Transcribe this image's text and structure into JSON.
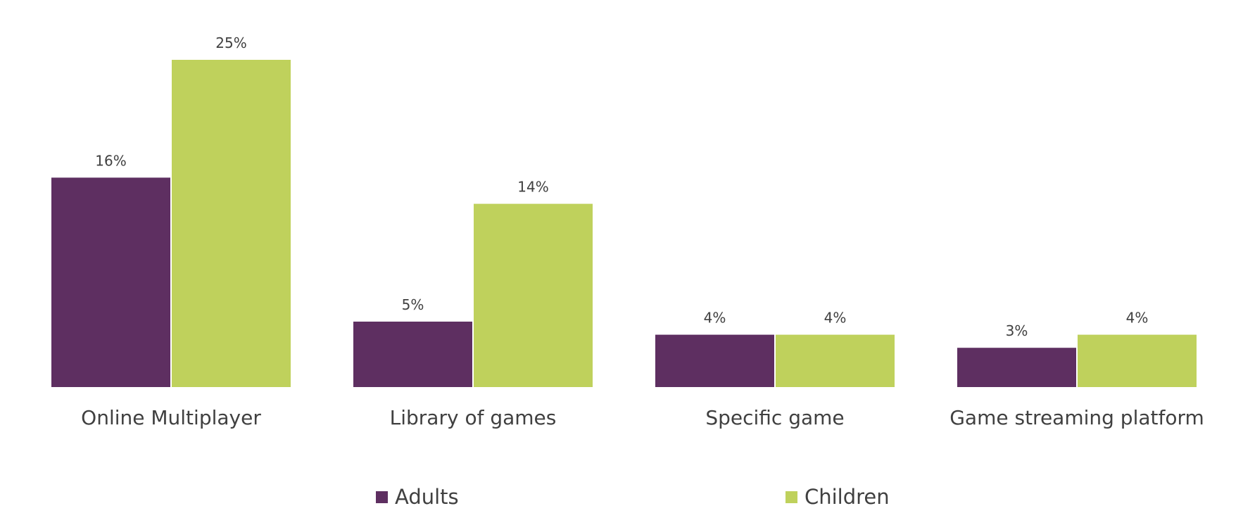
{
  "chart_data": {
    "type": "bar",
    "title": "",
    "xlabel": "",
    "ylabel": "",
    "ylim": [
      0,
      25
    ],
    "grid": false,
    "legend_position": "bottom",
    "categories": [
      "Online Multiplayer",
      "Library of games",
      "Specific game",
      "Game streaming platform"
    ],
    "series": [
      {
        "name": "Adults",
        "color": "#5e2f61",
        "values": [
          16,
          5,
          4,
          3
        ],
        "labels": [
          "16%",
          "5%",
          "4%",
          "3%"
        ]
      },
      {
        "name": "Children",
        "color": "#bfd15c",
        "values": [
          25,
          14,
          4,
          4
        ],
        "labels": [
          "25%",
          "14%",
          "4%",
          "4%"
        ]
      }
    ]
  }
}
